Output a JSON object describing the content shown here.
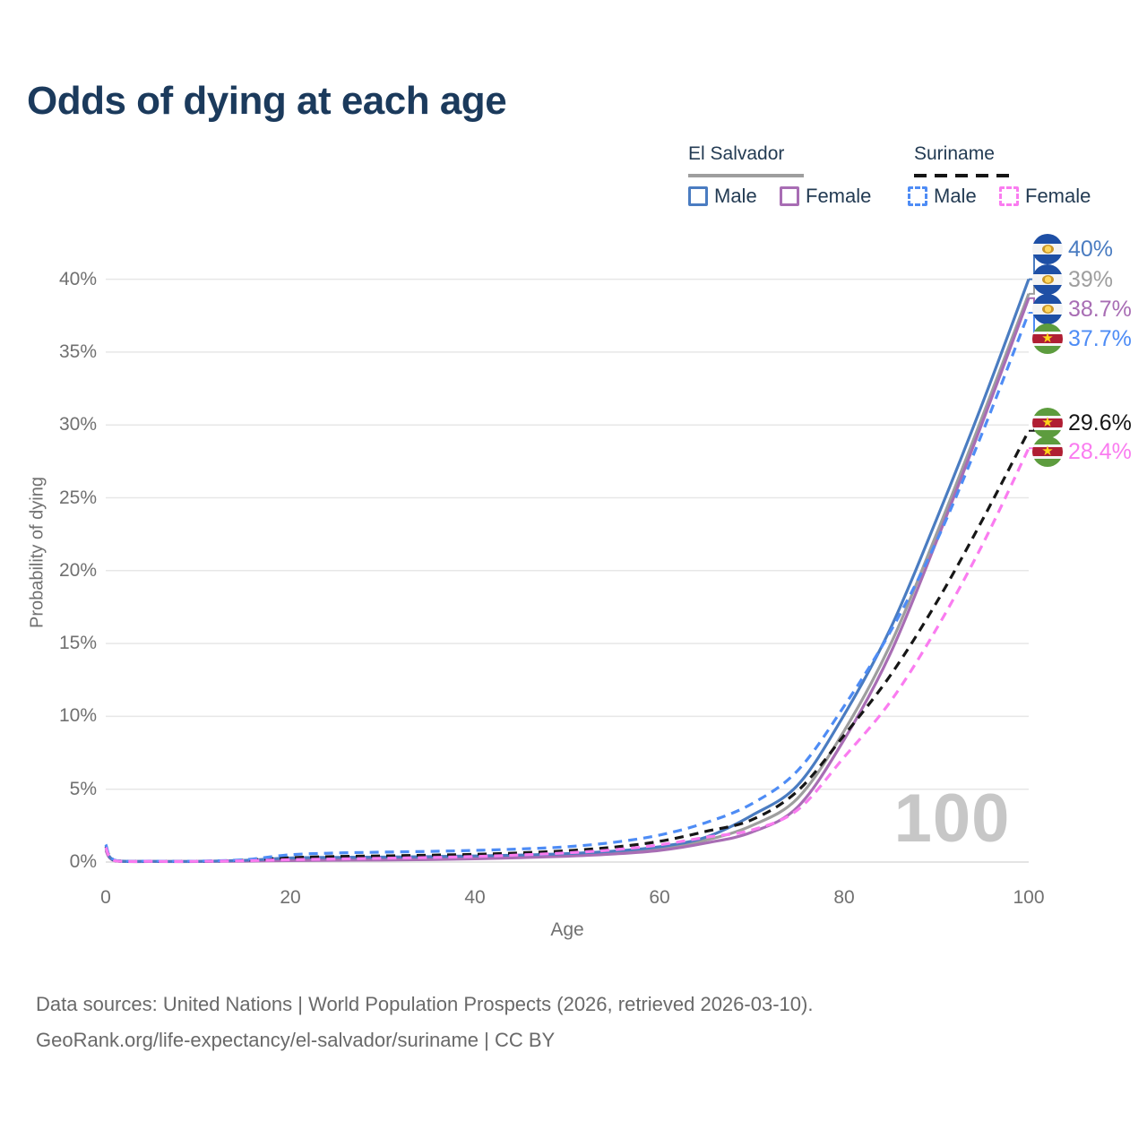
{
  "title": "Odds of dying at each age",
  "legend": {
    "groups": [
      {
        "name": "El Salvador",
        "line_style": "solid",
        "underline_color": "#9e9e9e",
        "items": [
          {
            "label": "Male",
            "color": "#4a7cc1"
          },
          {
            "label": "Female",
            "color": "#a86db4"
          }
        ]
      },
      {
        "name": "Suriname",
        "line_style": "dashed",
        "underline_color": "#151515",
        "items": [
          {
            "label": "Male",
            "color": "#4e8cf5"
          },
          {
            "label": "Female",
            "color": "#fa7cf0"
          }
        ]
      }
    ]
  },
  "chart_data": {
    "type": "line",
    "title": "Odds of dying at each age",
    "xlabel": "Age",
    "ylabel": "Probability of dying",
    "xlim": [
      0,
      100
    ],
    "ylim": [
      0,
      42.5
    ],
    "x_ticks": [
      "0",
      "20",
      "40",
      "60",
      "80",
      "100"
    ],
    "x_tick_values": [
      0,
      20,
      40,
      60,
      80,
      100
    ],
    "y_ticks": [
      "0%",
      "5%",
      "10%",
      "15%",
      "20%",
      "25%",
      "30%",
      "35%",
      "40%"
    ],
    "y_tick_values": [
      0,
      5,
      10,
      15,
      20,
      25,
      30,
      35,
      40
    ],
    "grid": "horizontal",
    "legend_position": "top-right",
    "watermark": "100",
    "x": [
      0,
      1,
      5,
      10,
      15,
      20,
      25,
      30,
      35,
      40,
      45,
      50,
      55,
      60,
      65,
      70,
      75,
      80,
      85,
      90,
      95,
      100
    ],
    "series": [
      {
        "name": "El Salvador Male",
        "country": "El Salvador",
        "sex": "Male",
        "color": "#4a7cc1",
        "dashed": false,
        "flag": "el-salvador",
        "end_label": "40%",
        "values": [
          1.0,
          0.1,
          0.05,
          0.05,
          0.12,
          0.28,
          0.32,
          0.34,
          0.37,
          0.42,
          0.48,
          0.58,
          0.75,
          1.05,
          1.7,
          3.2,
          5.3,
          10.1,
          16.0,
          23.5,
          31.5,
          40.0
        ]
      },
      {
        "name": "El Salvador Both sexes",
        "country": "El Salvador",
        "sex": "Both",
        "color": "#9e9e9e",
        "dashed": false,
        "flag": "el-salvador",
        "end_label": "39%",
        "values": [
          0.9,
          0.09,
          0.04,
          0.04,
          0.09,
          0.18,
          0.21,
          0.23,
          0.26,
          0.31,
          0.38,
          0.48,
          0.64,
          0.92,
          1.5,
          2.5,
          4.4,
          9.0,
          14.9,
          22.5,
          30.6,
          39.0
        ]
      },
      {
        "name": "El Salvador Female",
        "country": "El Salvador",
        "sex": "Female",
        "color": "#a86db4",
        "dashed": false,
        "flag": "el-salvador",
        "end_label": "38.7%",
        "values": [
          0.8,
          0.08,
          0.035,
          0.035,
          0.06,
          0.1,
          0.12,
          0.14,
          0.17,
          0.22,
          0.3,
          0.4,
          0.55,
          0.8,
          1.3,
          2.05,
          3.8,
          8.4,
          14.3,
          22.0,
          30.2,
          38.7
        ]
      },
      {
        "name": "Suriname Male",
        "country": "Suriname",
        "sex": "Male",
        "color": "#4e8cf5",
        "dashed": true,
        "flag": "suriname",
        "end_label": "37.7%",
        "values": [
          1.2,
          0.12,
          0.06,
          0.06,
          0.16,
          0.5,
          0.62,
          0.68,
          0.73,
          0.8,
          0.9,
          1.05,
          1.35,
          1.85,
          2.7,
          4.0,
          6.3,
          10.7,
          15.8,
          22.0,
          29.5,
          37.7
        ]
      },
      {
        "name": "Suriname Both sexes",
        "country": "Suriname",
        "sex": "Both",
        "color": "#161616",
        "dashed": true,
        "flag": "suriname",
        "end_label": "29.6%",
        "values": [
          1.1,
          0.1,
          0.05,
          0.05,
          0.12,
          0.3,
          0.38,
          0.42,
          0.47,
          0.53,
          0.63,
          0.78,
          1.02,
          1.42,
          2.1,
          2.9,
          4.9,
          8.7,
          12.8,
          17.8,
          23.5,
          29.6
        ]
      },
      {
        "name": "Suriname Female",
        "country": "Suriname",
        "sex": "Female",
        "color": "#fa7cf0",
        "dashed": true,
        "flag": "suriname",
        "end_label": "28.4%",
        "values": [
          1.0,
          0.09,
          0.045,
          0.045,
          0.09,
          0.16,
          0.21,
          0.26,
          0.31,
          0.38,
          0.49,
          0.63,
          0.84,
          1.18,
          1.7,
          2.2,
          3.6,
          7.2,
          11.0,
          16.0,
          21.8,
          28.4
        ]
      }
    ]
  },
  "footer": {
    "line1": "Data sources: United Nations | World Population Prospects (2026, retrieved 2026-03-10).",
    "line2": "GeoRank.org/life-expectancy/el-salvador/suriname | CC BY"
  },
  "icons": {
    "el_salvador_flag": "el-salvador-flag-icon",
    "suriname_flag": "suriname-flag-icon"
  }
}
